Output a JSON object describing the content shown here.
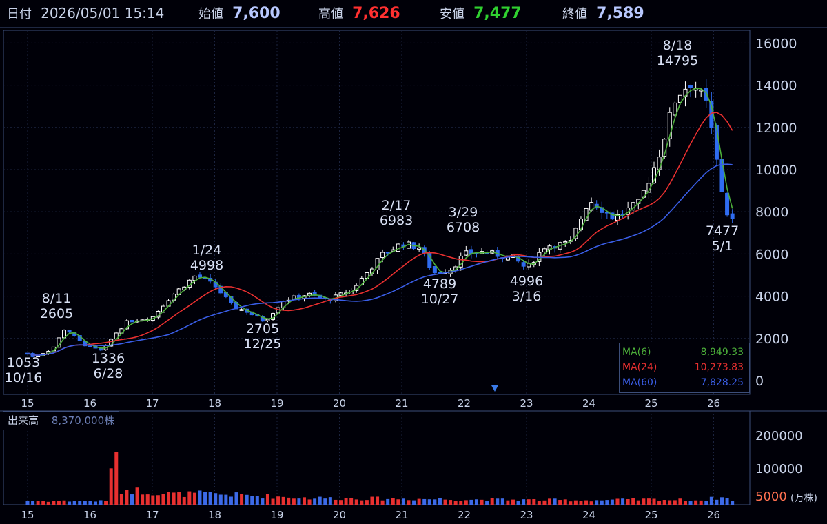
{
  "header": {
    "date_label": "日付",
    "date_value": "2026/05/01 15:14",
    "open_label": "始値",
    "open_value": "7,600",
    "high_label": "高値",
    "high_value": "7,626",
    "low_label": "安値",
    "low_value": "7,477",
    "close_label": "終値",
    "close_value": "7,589"
  },
  "ma_legend": [
    {
      "name": "MA(6)",
      "value": "8,949.33",
      "color": "#4caf3a"
    },
    {
      "name": "MA(24)",
      "value": "10,273.83",
      "color": "#e83030"
    },
    {
      "name": "MA(60)",
      "value": "7,828.25",
      "color": "#3a5ee8"
    }
  ],
  "volume": {
    "label": "出来高",
    "value": "8,370,000株",
    "unit": "(万株)",
    "yticks": [
      "200000",
      "100000",
      "5000"
    ]
  },
  "colors": {
    "up": "#ffffff",
    "down": "#2f6cf0",
    "ma6": "#4caf3a",
    "ma24": "#e83030",
    "ma60": "#3a5ee8",
    "vol_up": "#e83030",
    "vol_down": "#3c6ae8",
    "grid": "#3c4e7a"
  },
  "chart_data": {
    "type": "candlestick",
    "x_tick_labels": [
      "15",
      "16",
      "17",
      "18",
      "19",
      "20",
      "21",
      "22",
      "23",
      "24",
      "25",
      "26"
    ],
    "y_ticks": [
      0,
      2000,
      4000,
      6000,
      8000,
      10000,
      12000,
      14000,
      16000
    ],
    "ylim": [
      0,
      16600
    ],
    "annotations": [
      {
        "label": "8/11",
        "value": "2605",
        "pos": "above"
      },
      {
        "label": "1053",
        "value": "10/16",
        "pos": "below"
      },
      {
        "label": "1336",
        "value": "6/28",
        "pos": "below"
      },
      {
        "label": "1/24",
        "value": "4998",
        "pos": "above"
      },
      {
        "label": "2705",
        "value": "12/25",
        "pos": "below"
      },
      {
        "label": "2/17",
        "value": "6983",
        "pos": "above"
      },
      {
        "label": "3/29",
        "value": "6708",
        "pos": "above"
      },
      {
        "label": "4789",
        "value": "10/27",
        "pos": "below"
      },
      {
        "label": "4996",
        "value": "3/16",
        "pos": "below"
      },
      {
        "label": "8/18",
        "value": "14795",
        "pos": "above"
      },
      {
        "label": "7477",
        "value": "5/1",
        "pos": "below"
      }
    ],
    "price_anchors": [
      [
        0,
        1300
      ],
      [
        0.1,
        1100
      ],
      [
        0.4,
        1500
      ],
      [
        0.6,
        2500
      ],
      [
        0.9,
        1700
      ],
      [
        1.2,
        1400
      ],
      [
        1.4,
        2200
      ],
      [
        1.6,
        2800
      ],
      [
        2.0,
        3000
      ],
      [
        2.3,
        4000
      ],
      [
        2.7,
        5000
      ],
      [
        3.0,
        4500
      ],
      [
        3.3,
        3500
      ],
      [
        3.5,
        3300
      ],
      [
        3.8,
        2800
      ],
      [
        4.1,
        3800
      ],
      [
        4.5,
        4100
      ],
      [
        4.8,
        3800
      ],
      [
        5.2,
        4300
      ],
      [
        5.7,
        6000
      ],
      [
        6.0,
        6500
      ],
      [
        6.3,
        6300
      ],
      [
        6.5,
        5100
      ],
      [
        6.8,
        5300
      ],
      [
        7.0,
        6000
      ],
      [
        7.3,
        6100
      ],
      [
        7.8,
        5800
      ],
      [
        8.0,
        5300
      ],
      [
        8.3,
        6400
      ],
      [
        8.7,
        6500
      ],
      [
        9.0,
        8600
      ],
      [
        9.4,
        7700
      ],
      [
        9.8,
        8400
      ],
      [
        10.1,
        10500
      ],
      [
        10.4,
        13500
      ],
      [
        10.65,
        14200
      ],
      [
        10.9,
        13000
      ],
      [
        11.1,
        9500
      ],
      [
        11.2,
        8000
      ],
      [
        11.3,
        7600
      ]
    ],
    "volume_anchors": [
      [
        0,
        10000
      ],
      [
        1.3,
        10000
      ],
      [
        1.38,
        230000
      ],
      [
        1.45,
        38000
      ],
      [
        1.6,
        40000
      ],
      [
        2.4,
        28000
      ],
      [
        2.8,
        30000
      ],
      [
        3.5,
        25000
      ],
      [
        4.5,
        18000
      ],
      [
        6.0,
        16000
      ],
      [
        7.0,
        14000
      ],
      [
        9.0,
        12000
      ],
      [
        10.0,
        14000
      ],
      [
        10.8,
        12000
      ],
      [
        11.1,
        20000
      ],
      [
        11.3,
        14000
      ]
    ],
    "ma_end_values": {
      "MA(6)": 8949.33,
      "MA(24)": 10273.83,
      "MA(60)": 7828.25
    }
  }
}
